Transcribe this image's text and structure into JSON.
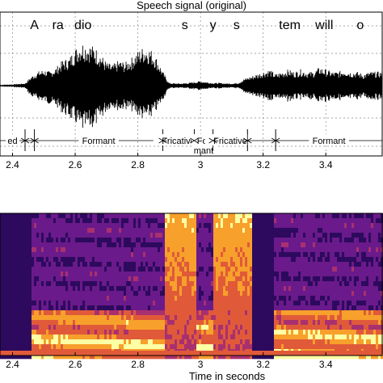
{
  "chart_data": [
    {
      "type": "line",
      "title": "Speech signal (original)",
      "xlabel": "",
      "xlim": [
        2.36,
        3.58
      ],
      "x_ticks": [
        2.4,
        2.6,
        2.8,
        3,
        3.2,
        3.4
      ],
      "x_tick_labels": [
        "2.4",
        "2.6",
        "2.8",
        "3",
        "3.2",
        "3.4"
      ],
      "grid": true,
      "words": [
        {
          "text": "A",
          "x": 2.47
        },
        {
          "text": "ra",
          "x": 2.545
        },
        {
          "text": "dio",
          "x": 2.625
        },
        {
          "text": "s",
          "x": 2.95
        },
        {
          "text": "y",
          "x": 3.04
        },
        {
          "text": "s",
          "x": 3.115
        },
        {
          "text": "tem",
          "x": 3.285
        },
        {
          "text": "will",
          "x": 3.395
        },
        {
          "text": "o",
          "x": 3.51
        }
      ],
      "segments": [
        {
          "label": "ed",
          "start": 2.36,
          "end": 2.44
        },
        {
          "label": "",
          "start": 2.44,
          "end": 2.47
        },
        {
          "label": "Formant",
          "start": 2.47,
          "end": 2.88
        },
        {
          "label": "Fricative",
          "start": 2.88,
          "end": 2.98
        },
        {
          "label": "For mant",
          "start": 2.98,
          "end": 3.04
        },
        {
          "label": "Fricative",
          "start": 3.04,
          "end": 3.15
        },
        {
          "label": "",
          "start": 3.15,
          "end": 3.24
        },
        {
          "label": "Formant",
          "start": 3.24,
          "end": 3.58
        }
      ],
      "envelope": {
        "x": [
          2.36,
          2.4,
          2.44,
          2.46,
          2.48,
          2.5,
          2.52,
          2.54,
          2.56,
          2.58,
          2.6,
          2.62,
          2.64,
          2.66,
          2.68,
          2.7,
          2.72,
          2.74,
          2.76,
          2.78,
          2.8,
          2.82,
          2.84,
          2.86,
          2.88,
          2.9,
          2.92,
          2.94,
          2.96,
          2.98,
          3.0,
          3.02,
          3.04,
          3.06,
          3.08,
          3.1,
          3.12,
          3.14,
          3.16,
          3.18,
          3.2,
          3.22,
          3.24,
          3.26,
          3.28,
          3.3,
          3.32,
          3.34,
          3.36,
          3.38,
          3.4,
          3.42,
          3.44,
          3.46,
          3.48,
          3.5,
          3.52,
          3.54,
          3.56,
          3.58
        ],
        "upper": [
          0.02,
          0.03,
          0.05,
          0.2,
          0.3,
          0.35,
          0.3,
          0.4,
          0.55,
          0.6,
          0.8,
          0.95,
          0.9,
          0.85,
          0.7,
          0.5,
          0.45,
          0.55,
          0.5,
          0.6,
          0.75,
          0.85,
          0.8,
          0.6,
          0.3,
          0.06,
          0.05,
          0.05,
          0.06,
          0.08,
          0.1,
          0.08,
          0.06,
          0.06,
          0.05,
          0.05,
          0.06,
          0.15,
          0.2,
          0.25,
          0.3,
          0.35,
          0.25,
          0.3,
          0.35,
          0.3,
          0.35,
          0.3,
          0.3,
          0.4,
          0.35,
          0.3,
          0.3,
          0.35,
          0.3,
          0.3,
          0.25,
          0.3,
          0.3,
          0.3
        ],
        "lower": [
          -0.02,
          -0.03,
          -0.05,
          -0.25,
          -0.3,
          -0.35,
          -0.4,
          -0.45,
          -0.6,
          -0.7,
          -0.8,
          -1.0,
          -0.95,
          -0.9,
          -0.75,
          -0.55,
          -0.45,
          -0.55,
          -0.5,
          -0.55,
          -0.65,
          -0.75,
          -0.7,
          -0.55,
          -0.3,
          -0.06,
          -0.05,
          -0.05,
          -0.06,
          -0.08,
          -0.1,
          -0.08,
          -0.06,
          -0.06,
          -0.05,
          -0.05,
          -0.06,
          -0.15,
          -0.2,
          -0.25,
          -0.3,
          -0.35,
          -0.25,
          -0.3,
          -0.35,
          -0.3,
          -0.3,
          -0.3,
          -0.3,
          -0.35,
          -0.35,
          -0.3,
          -0.3,
          -0.35,
          -0.3,
          -0.3,
          -0.25,
          -0.3,
          -0.3,
          -0.3
        ]
      }
    },
    {
      "type": "heatmap",
      "xlabel": "Time in seconds",
      "xlim": [
        2.36,
        3.58
      ],
      "x_ticks": [
        2.4,
        2.6,
        2.8,
        3,
        3.2,
        3.4
      ],
      "x_tick_labels": [
        "2.4",
        "2.6",
        "2.8",
        "3",
        "3.2",
        "3.4"
      ],
      "colormap": "inferno",
      "colors": [
        "#000004",
        "#2d0a5e",
        "#6a1a8a",
        "#a9306f",
        "#e05a3a",
        "#f7a02b",
        "#fcffa4"
      ]
    }
  ]
}
